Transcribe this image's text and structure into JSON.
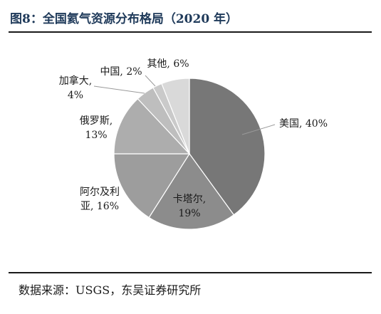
{
  "figure": {
    "title": "图8：全国氦气资源分布格局（2020 年）",
    "source": "数据来源：USGS，东吴证券研究所"
  },
  "chart_data": {
    "type": "pie",
    "title": "图8：全国氦气资源分布格局（2020 年）",
    "slices": [
      {
        "name": "美国",
        "value": 40,
        "color": "#777777",
        "label_lines": [
          "美国, 40%"
        ]
      },
      {
        "name": "卡塔尔",
        "value": 19,
        "color": "#8c8c8c",
        "label_lines": [
          "卡塔尔,",
          "19%"
        ]
      },
      {
        "name": "阿尔及利亚",
        "value": 16,
        "color": "#9d9d9d",
        "label_lines": [
          "阿尔及利",
          "亚, 16%"
        ]
      },
      {
        "name": "俄罗斯",
        "value": 13,
        "color": "#adadad",
        "label_lines": [
          "俄罗斯,",
          "13%"
        ]
      },
      {
        "name": "加拿大",
        "value": 4,
        "color": "#bebebe",
        "label_lines": [
          "加拿大,",
          "4%"
        ]
      },
      {
        "name": "中国",
        "value": 2,
        "color": "#cacaca",
        "label_lines": [
          "中国, 2%"
        ]
      },
      {
        "name": "其他",
        "value": 6,
        "color": "#d9d9d9",
        "label_lines": [
          "其他, 6%"
        ]
      }
    ]
  }
}
